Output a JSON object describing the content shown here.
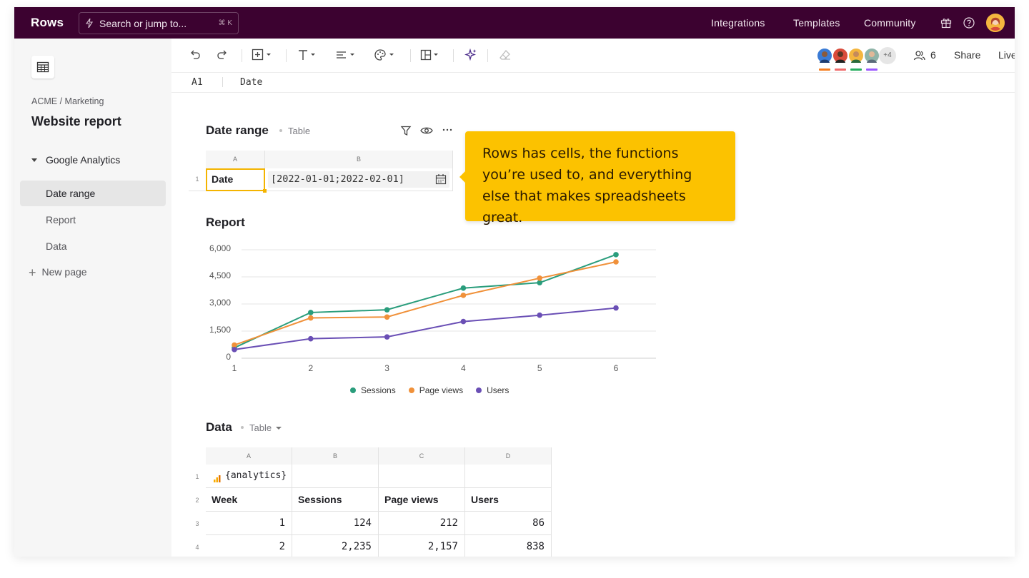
{
  "app": {
    "logo": "Rows",
    "search_placeholder": "Search or jump to...",
    "search_shortcut": "⌘ K",
    "nav": [
      "Integrations",
      "Templates",
      "Community"
    ]
  },
  "sidebar": {
    "breadcrumb": "ACME / Marketing",
    "title": "Website report",
    "group": "Google Analytics",
    "items": [
      {
        "label": "Date range",
        "active": true
      },
      {
        "label": "Report",
        "active": false
      },
      {
        "label": "Data",
        "active": false
      }
    ],
    "new_page": "New page"
  },
  "toolbar": {
    "collaborators_more": "+4",
    "people_count": "6",
    "share": "Share",
    "live": "Live",
    "collaborator_colors": [
      "#f57d1f",
      "#f06b6b",
      "#27ae60",
      "#9b59ff"
    ]
  },
  "formula_bar": {
    "cell_ref": "A1",
    "value": "Date"
  },
  "date_range": {
    "title": "Date range",
    "type": "Table",
    "columns": [
      "A",
      "B"
    ],
    "row_num": "1",
    "label": "Date",
    "value": "[2022-01-01;2022-02-01]"
  },
  "tooltip": {
    "text": "Rows has cells, the functions you’re used to, and everything else that makes spreadsheets great."
  },
  "report": {
    "title": "Report"
  },
  "chart_data": {
    "type": "line",
    "x": [
      1,
      2,
      3,
      4,
      5,
      6
    ],
    "y_ticks": [
      "6,000",
      "4,500",
      "3,000",
      "1,500",
      "0"
    ],
    "ylim": [
      0,
      6000
    ],
    "series": [
      {
        "name": "Sessions",
        "color": "#2a9d7c",
        "values": [
          500,
          2450,
          2600,
          3800,
          4100,
          5650
        ]
      },
      {
        "name": "Page views",
        "color": "#f0913a",
        "values": [
          650,
          2150,
          2200,
          3400,
          4350,
          5250
        ]
      },
      {
        "name": "Users",
        "color": "#6a4fb5",
        "values": [
          400,
          1000,
          1100,
          1950,
          2300,
          2700
        ]
      }
    ],
    "legend_position": "bottom"
  },
  "data_table": {
    "title": "Data",
    "type": "Table",
    "columns": [
      "A",
      "B",
      "C",
      "D"
    ],
    "row_nums": [
      "1",
      "2",
      "3",
      "4"
    ],
    "source": "{analytics}",
    "headers": [
      "Week",
      "Sessions",
      "Page views",
      "Users"
    ],
    "rows": [
      [
        "1",
        "124",
        "212",
        "86"
      ],
      [
        "2",
        "2,235",
        "2,157",
        "838"
      ]
    ]
  }
}
